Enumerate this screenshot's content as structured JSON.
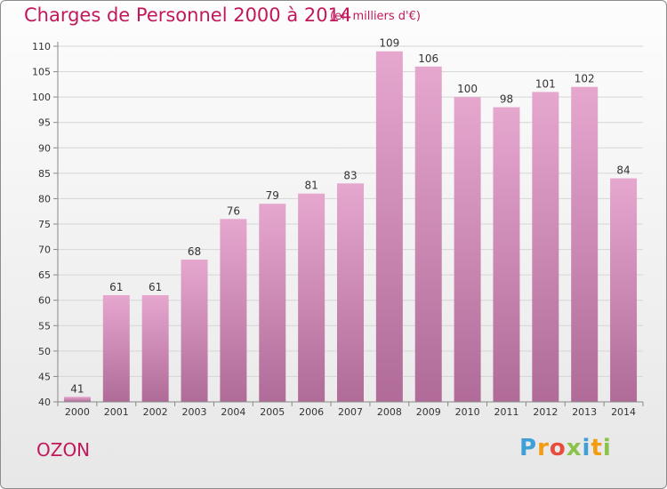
{
  "header": {
    "title": "Charges de Personnel 2000 à 2014",
    "unit": "(en milliers d'€)"
  },
  "footer": {
    "commune": "OZON",
    "logo": {
      "letters": [
        "P",
        "r",
        "o",
        "x",
        "i",
        "t",
        "i"
      ],
      "colors": [
        "#3fa0d8",
        "#f39c12",
        "#e74c3c",
        "#8bc34a",
        "#3fa0d8",
        "#f39c12",
        "#8bc34a"
      ]
    }
  },
  "colors": {
    "accent": "#c2185b",
    "bar_top": "#e6a7cf",
    "bar_bottom": "#b06b98"
  },
  "chart_data": {
    "type": "bar",
    "title": "Charges de Personnel 2000 à 2014",
    "subtitle": "(en milliers d'€)",
    "categories": [
      "2000",
      "2001",
      "2002",
      "2003",
      "2004",
      "2005",
      "2006",
      "2007",
      "2008",
      "2009",
      "2010",
      "2011",
      "2012",
      "2013",
      "2014"
    ],
    "values": [
      41,
      61,
      61,
      68,
      76,
      79,
      81,
      83,
      109,
      106,
      100,
      98,
      101,
      102,
      84
    ],
    "ylim": [
      40,
      110
    ],
    "yticks": [
      40,
      45,
      50,
      55,
      60,
      65,
      70,
      75,
      80,
      85,
      90,
      95,
      100,
      105,
      110
    ],
    "grid": true,
    "data_labels": true
  }
}
